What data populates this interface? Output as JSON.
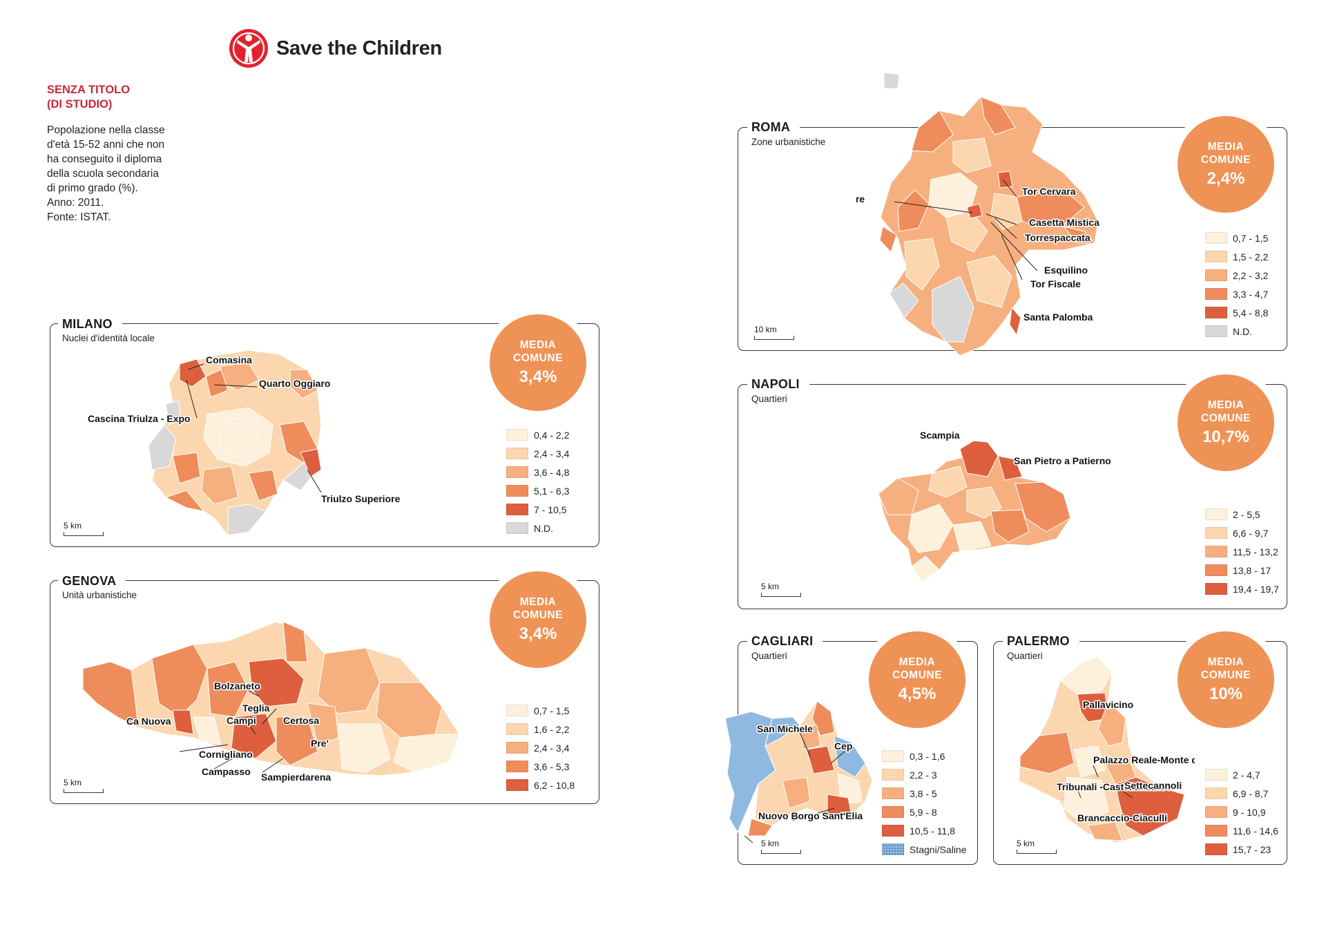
{
  "brand": {
    "name": "Save the Children",
    "color": "#e2222d"
  },
  "intro": {
    "title_lines": [
      "SENZA TITOLO",
      "(DI STUDIO)"
    ],
    "desc_lines": [
      "Popolazione nella classe",
      "d'età 15-52 anni che non",
      "ha conseguito il diploma",
      "della scuola secondaria",
      "di primo grado (%).",
      "Anno: 2011.",
      "Fonte: ISTAT."
    ]
  },
  "panels": {
    "roma": {
      "title": "ROMA",
      "subtitle": "Zone urbanistiche",
      "badge": {
        "line1": "MEDIA",
        "line2": "COMUNE",
        "value": "2,4%"
      },
      "scale": "10 km",
      "legend": [
        {
          "label": "0,7 - 1,5",
          "color": "#fdf0dc"
        },
        {
          "label": "1,5 - 2,2",
          "color": "#fcd6ae"
        },
        {
          "label": "2,2 - 3,2",
          "color": "#f6b07f"
        },
        {
          "label": "3,3 - 4,7",
          "color": "#ee8c5c"
        },
        {
          "label": "5,4 - 8,8",
          "color": "#dd5f3e"
        },
        {
          "label": "N.D.",
          "color": "#d8d8d8"
        }
      ],
      "places": [
        "Trastevere",
        "Tor Cervara",
        "Casetta Mistica",
        "Torrespaccata",
        "Esquilino",
        "Tor Fiscale",
        "Santa Palomba"
      ]
    },
    "milano": {
      "title": "MILANO",
      "subtitle": "Nuclei d'identità locale",
      "badge": {
        "line1": "MEDIA",
        "line2": "COMUNE",
        "value": "3,4%"
      },
      "scale": "5 km",
      "legend": [
        {
          "label": "0,4 - 2,2",
          "color": "#fdf0dc"
        },
        {
          "label": "2,4 - 3,4",
          "color": "#fcd6ae"
        },
        {
          "label": "3,6 - 4,8",
          "color": "#f6b07f"
        },
        {
          "label": "5,1 - 6,3",
          "color": "#ee8c5c"
        },
        {
          "label": "7 - 10,5",
          "color": "#dd5f3e"
        },
        {
          "label": "N.D.",
          "color": "#d8d8d8"
        }
      ],
      "places": [
        "Comasina",
        "Quarto Oggiaro",
        "Cascina Triulza - Expo",
        "Triulzo Superiore"
      ]
    },
    "napoli": {
      "title": "NAPOLI",
      "subtitle": "Quartieri",
      "badge": {
        "line1": "MEDIA",
        "line2": "COMUNE",
        "value": "10,7%"
      },
      "scale": "5 km",
      "legend": [
        {
          "label": "2 - 5,5",
          "color": "#fdf0dc"
        },
        {
          "label": "6,6 - 9,7",
          "color": "#fcd6ae"
        },
        {
          "label": "11,5 - 13,2",
          "color": "#f6b07f"
        },
        {
          "label": "13,8 - 17",
          "color": "#ee8c5c"
        },
        {
          "label": "19,4 - 19,7",
          "color": "#dd5f3e"
        }
      ],
      "places": [
        "Scampia",
        "San Pietro a Patierno"
      ]
    },
    "genova": {
      "title": "GENOVA",
      "subtitle": "Unità urbanistiche",
      "badge": {
        "line1": "MEDIA",
        "line2": "COMUNE",
        "value": "3,4%"
      },
      "scale": "5 km",
      "legend": [
        {
          "label": "0,7 - 1,5",
          "color": "#fdf0dc"
        },
        {
          "label": "1,6 - 2,2",
          "color": "#fcd6ae"
        },
        {
          "label": "2,4 - 3,4",
          "color": "#f6b07f"
        },
        {
          "label": "3,6 - 5,3",
          "color": "#ee8c5c"
        },
        {
          "label": "6,2 - 10,8",
          "color": "#dd5f3e"
        }
      ],
      "places": [
        "Bolzaneto",
        "Teglia",
        "Ca Nuova",
        "Campi",
        "Certosa",
        "Pre'",
        "Cornigliano",
        "Campasso",
        "Sampierdarena"
      ]
    },
    "cagliari": {
      "title": "CAGLIARI",
      "subtitle": "Quartieri",
      "badge": {
        "line1": "MEDIA",
        "line2": "COMUNE",
        "value": "4,5%"
      },
      "scale": "5 km",
      "legend": [
        {
          "label": "0,3 - 1,6",
          "color": "#fdf0dc"
        },
        {
          "label": "2,2 - 3",
          "color": "#fcd6ae"
        },
        {
          "label": "3,8 - 5",
          "color": "#f6b07f"
        },
        {
          "label": "5,9 - 8",
          "color": "#ee8c5c"
        },
        {
          "label": "10,5 - 11,8",
          "color": "#dd5f3e"
        },
        {
          "label": "Stagni/Saline",
          "color": "#8fb9e0"
        }
      ],
      "places": [
        "San Michele",
        "Cep",
        "Nuovo Borgo Sant'Elia"
      ]
    },
    "palermo": {
      "title": "PALERMO",
      "subtitle": "Quartieri",
      "badge": {
        "line1": "MEDIA",
        "line2": "COMUNE",
        "value": "10%"
      },
      "scale": "5 km",
      "legend": [
        {
          "label": "2 - 4,7",
          "color": "#fdf0dc"
        },
        {
          "label": "6,9 - 8,7",
          "color": "#fcd6ae"
        },
        {
          "label": "9 - 10,9",
          "color": "#f6b07f"
        },
        {
          "label": "11,6 - 14,6",
          "color": "#ee8c5c"
        },
        {
          "label": "15,7 - 23",
          "color": "#dd5f3e"
        }
      ],
      "places": [
        "Pallavicino",
        "Palazzo Reale-Monte di Pietà",
        "Tribunali -Castellammare",
        "Settecannoli",
        "Brancaccio-Ciaculli"
      ]
    }
  }
}
